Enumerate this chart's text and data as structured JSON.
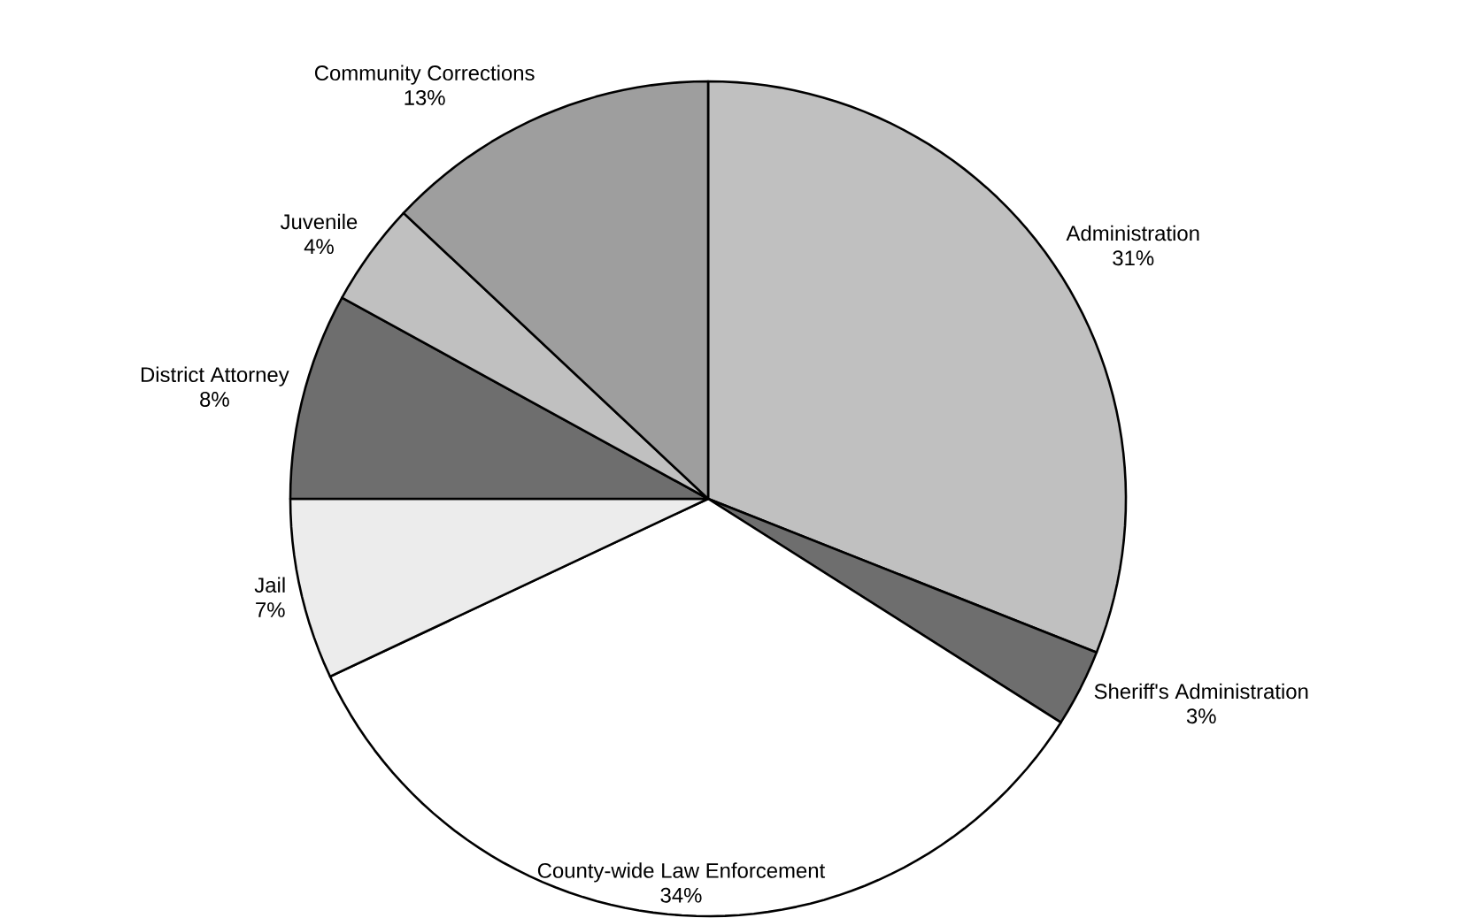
{
  "chart_data": {
    "type": "pie",
    "categories": [
      "Administration",
      "Sheriff's Administration",
      "County-wide Law Enforcement",
      "Jail",
      "District Attorney",
      "Juvenile",
      "Community Corrections"
    ],
    "values": [
      31,
      3,
      34,
      7,
      8,
      4,
      13
    ],
    "value_labels": [
      "31%",
      "3%",
      "34%",
      "7%",
      "8%",
      "4%",
      "13%"
    ],
    "colors": [
      "#c0c0c0",
      "#6e6e6e",
      "#ffffff",
      "#ececec",
      "#6e6e6e",
      "#c0c0c0",
      "#9e9e9e"
    ]
  }
}
